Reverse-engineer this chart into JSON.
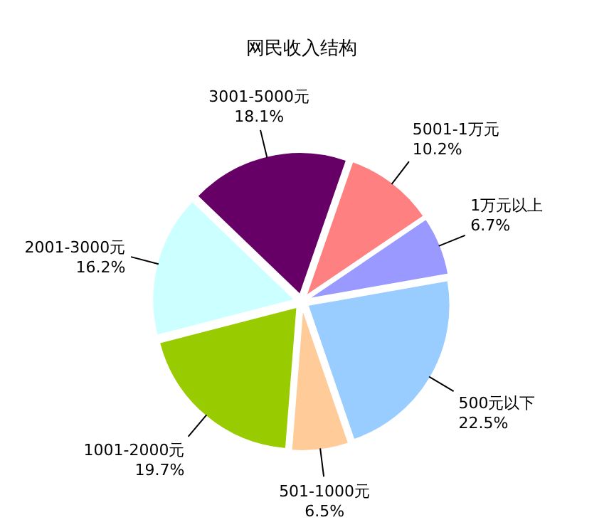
{
  "chart_data": {
    "type": "pie",
    "title": "网民收入结构",
    "categories": [
      "500元以下",
      "501-1000元",
      "1001-2000元",
      "2001-3000元",
      "3001-5000元",
      "5001-1万元",
      "1万元以上"
    ],
    "values": [
      22.5,
      6.5,
      19.7,
      16.2,
      18.1,
      10.2,
      6.7
    ],
    "value_labels": [
      "22.5%",
      "6.5%",
      "19.7%",
      "16.2%",
      "18.1%",
      "10.2%",
      "6.7%"
    ],
    "colors": [
      "#99ccff",
      "#ffcc99",
      "#99cc00",
      "#ccffff",
      "#660066",
      "#ff8080",
      "#9999ff"
    ]
  }
}
